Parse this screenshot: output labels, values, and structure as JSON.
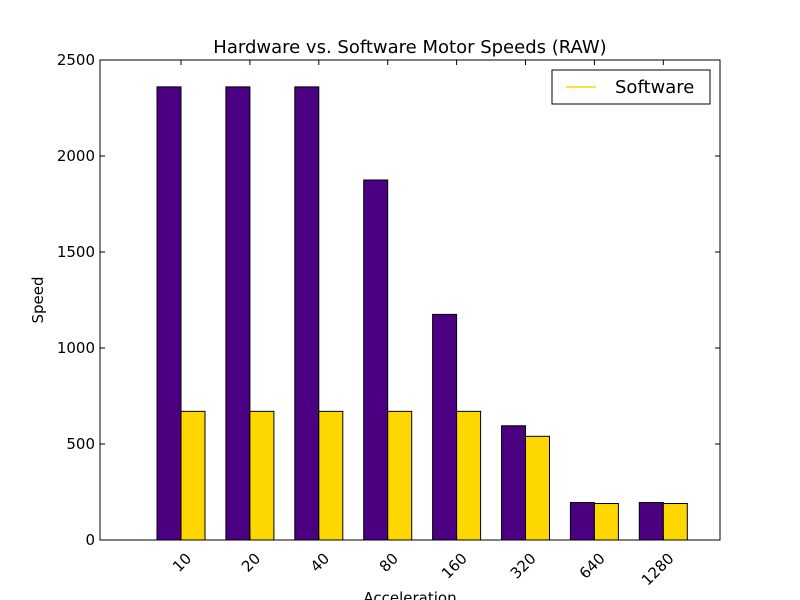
{
  "chart_data": {
    "type": "bar",
    "title": "Hardware vs. Software Motor Speeds (RAW)",
    "xlabel": "Acceleration",
    "ylabel": "Speed",
    "categories": [
      "10",
      "20",
      "40",
      "80",
      "160",
      "320",
      "640",
      "1280"
    ],
    "ylim": [
      0,
      2500
    ],
    "yticks": [
      "0",
      "500",
      "1000",
      "1500",
      "2000",
      "2500"
    ],
    "grid": false,
    "legend_position": "top-right",
    "legend_entries": [
      "Software"
    ],
    "series": [
      {
        "values": [
          2360,
          2360,
          2360,
          1875,
          1175,
          595,
          195,
          195
        ],
        "color": "#4b0082"
      },
      {
        "name": "Software",
        "values": [
          670,
          670,
          670,
          670,
          670,
          540,
          190,
          190
        ],
        "color": "#ffd700"
      }
    ]
  }
}
